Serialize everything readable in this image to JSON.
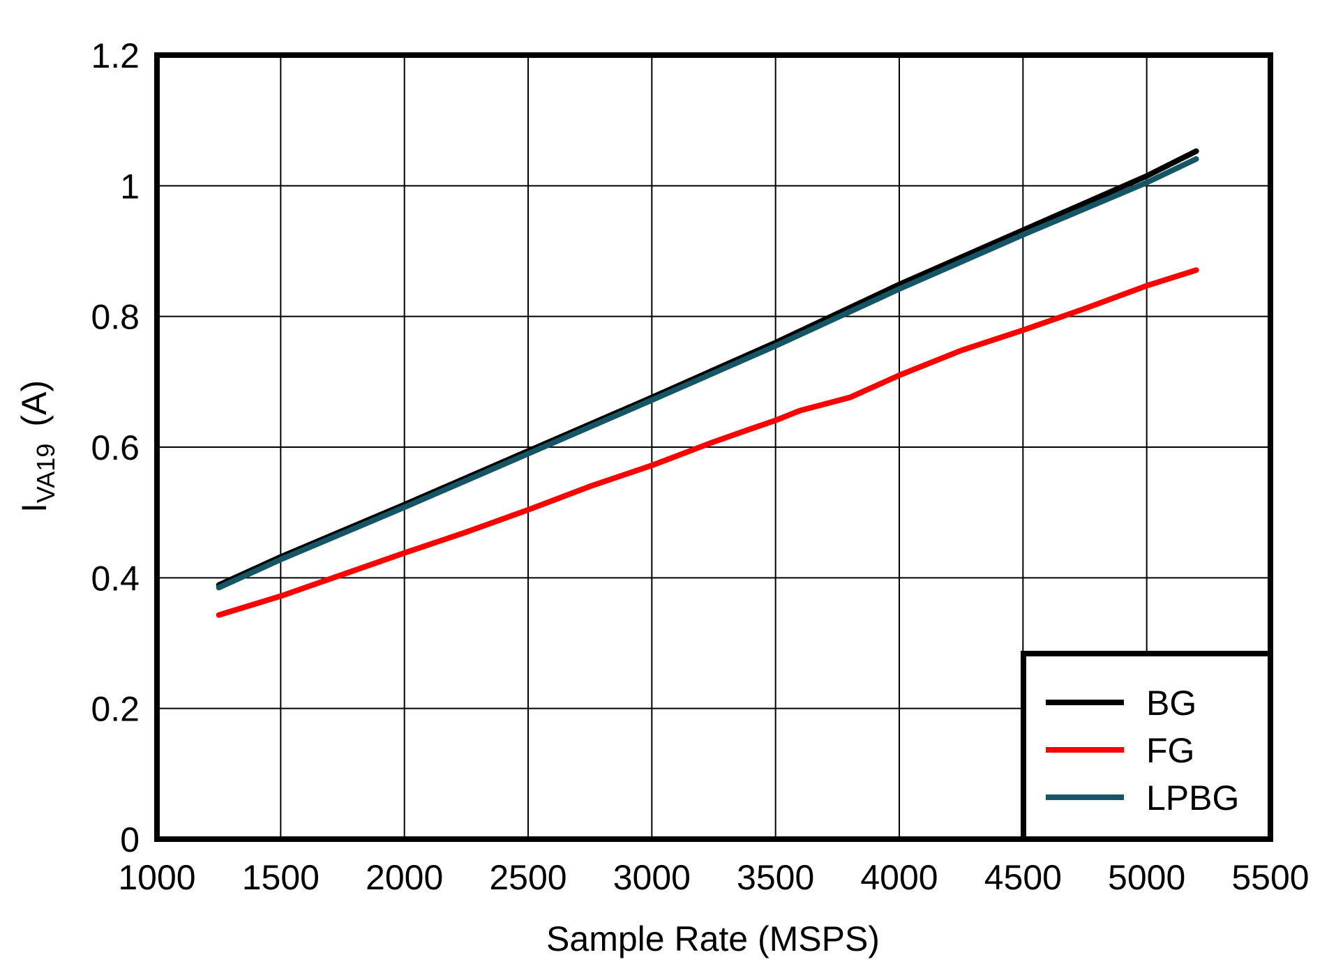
{
  "chart_data": {
    "type": "line",
    "title": "",
    "xlabel": "Sample Rate  (MSPS)",
    "ylabel": {
      "main": "I",
      "subscript": "VA19",
      "unit": "(A)"
    },
    "xlim": [
      1000,
      5500
    ],
    "ylim": [
      0,
      1.2
    ],
    "x_ticks": [
      "1000",
      "1500",
      "2000",
      "2500",
      "3000",
      "3500",
      "4000",
      "4500",
      "5000",
      "5500"
    ],
    "y_ticks": [
      "0",
      "0.2",
      "0.4",
      "0.6",
      "0.8",
      "1",
      "1.2"
    ],
    "grid": true,
    "legend_position": "lower right",
    "series": [
      {
        "name": "BG",
        "color": "#000000",
        "x": [
          1250,
          1500,
          2000,
          2500,
          3000,
          3500,
          4000,
          4500,
          5000,
          5200
        ],
        "values": [
          0.389,
          0.432,
          0.512,
          0.594,
          0.676,
          0.76,
          0.849,
          0.932,
          1.015,
          1.053
        ]
      },
      {
        "name": "FG",
        "color": "#ff0000",
        "x": [
          1250,
          1500,
          2000,
          2250,
          2500,
          2750,
          3000,
          3250,
          3400,
          3500,
          3600,
          3800,
          4000,
          4250,
          4500,
          4750,
          5000,
          5200
        ],
        "values": [
          0.343,
          0.372,
          0.438,
          0.47,
          0.504,
          0.54,
          0.572,
          0.608,
          0.628,
          0.641,
          0.656,
          0.676,
          0.71,
          0.748,
          0.779,
          0.812,
          0.847,
          0.871
        ]
      },
      {
        "name": "LPBG",
        "color": "#145566",
        "x": [
          1250,
          1500,
          2000,
          2500,
          3000,
          3500,
          4000,
          4500,
          5000,
          5200
        ],
        "values": [
          0.385,
          0.428,
          0.508,
          0.59,
          0.672,
          0.755,
          0.842,
          0.925,
          1.005,
          1.041
        ]
      }
    ]
  },
  "legend": {
    "items": [
      {
        "label": "BG",
        "color": "#000000"
      },
      {
        "label": "FG",
        "color": "#ff0000"
      },
      {
        "label": "LPBG",
        "color": "#145566"
      }
    ]
  }
}
